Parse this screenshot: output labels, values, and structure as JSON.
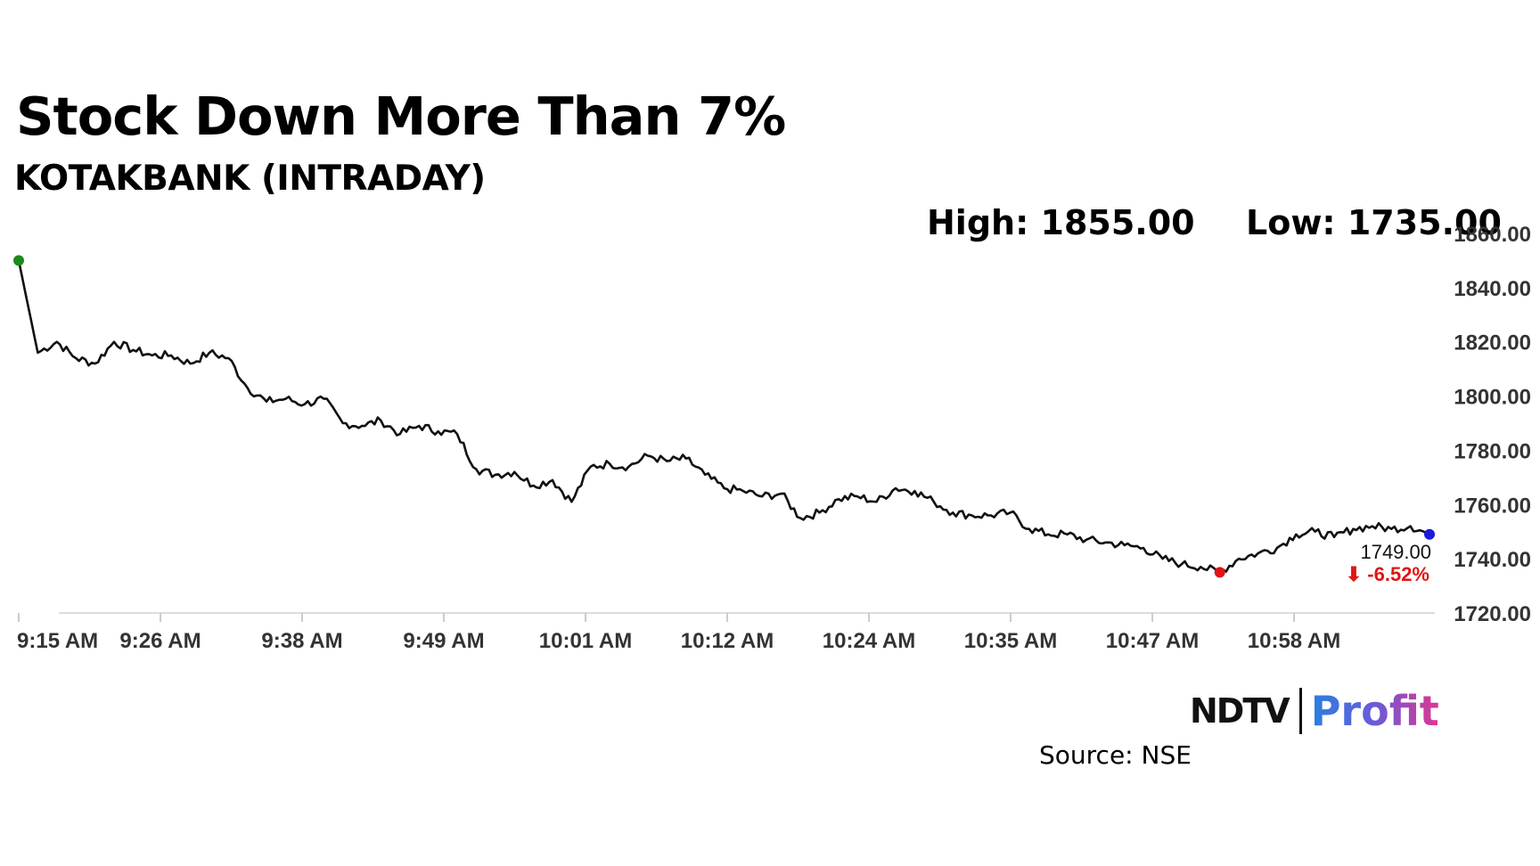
{
  "header": {
    "title": "Stock Down More Than 7%",
    "subtitle": "KOTAKBANK (INTRADAY)"
  },
  "stats": {
    "high": "High: 1855.00",
    "low": "Low: 1735.00"
  },
  "chart_data": {
    "type": "line",
    "title": "Stock Down More Than 7%",
    "subtitle": "KOTAKBANK (INTRADAY)",
    "ylim": [
      1720,
      1860
    ],
    "y_ticks": [
      "1860.00",
      "1840.00",
      "1820.00",
      "1800.00",
      "1780.00",
      "1760.00",
      "1740.00",
      "1720.00"
    ],
    "x_ticks": [
      "9:15 AM",
      "9:26 AM",
      "9:38 AM",
      "9:49 AM",
      "10:01 AM",
      "10:12 AM",
      "10:24 AM",
      "10:35 AM",
      "10:47 AM",
      "10:58 AM"
    ],
    "grid": false,
    "series": [
      {
        "values": [
          1850,
          1816,
          1820,
          1814,
          1812,
          1820,
          1817,
          1815,
          1815,
          1812,
          1816,
          1814,
          1803,
          1798,
          1799,
          1797,
          1799,
          1790,
          1789,
          1791,
          1786,
          1789,
          1787,
          1786,
          1773,
          1771,
          1772,
          1767,
          1769,
          1761,
          1774,
          1775,
          1774,
          1778,
          1776,
          1777,
          1771,
          1766,
          1765,
          1763,
          1764,
          1755,
          1757,
          1762,
          1763,
          1761,
          1766,
          1765,
          1761,
          1757,
          1756,
          1756,
          1757,
          1751,
          1749,
          1749,
          1747,
          1746,
          1745,
          1744,
          1740,
          1738,
          1737,
          1735,
          1740,
          1742,
          1744,
          1749,
          1750,
          1748,
          1751,
          1752,
          1751,
          1752,
          1749
        ]
      }
    ],
    "markers": {
      "open": {
        "index": 0,
        "value": 1850,
        "color": "#1a8a1a"
      },
      "low": {
        "index": 63,
        "value": 1735,
        "color": "#e01515"
      },
      "last": {
        "index": 74,
        "value": 1749,
        "color": "#1a1adc"
      }
    },
    "last_label": {
      "price": "1749.00",
      "change": "⬇ -6.52%"
    },
    "colors": {
      "line": "#111111",
      "down": "#e01515",
      "axis": "#dddddd",
      "tick_text": "#333333"
    }
  },
  "footer": {
    "brand_left": "NDTV",
    "brand_right": "Profit",
    "source": "Source: NSE"
  }
}
